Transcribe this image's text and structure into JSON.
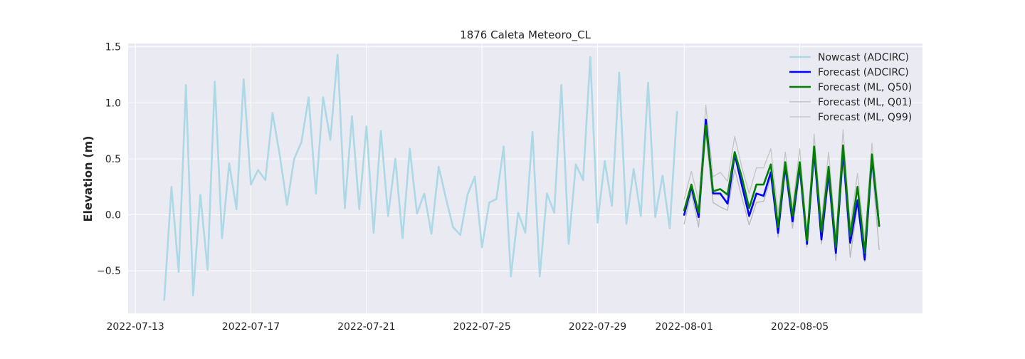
{
  "chart_data": {
    "type": "line",
    "title": "1876 Caleta Meteoro_CL",
    "xlabel": "",
    "ylabel": "Elevation (m)",
    "xlim": [
      "2022-07-12T18:00",
      "2022-08-09T06:00"
    ],
    "ylim": [
      -0.88,
      1.53
    ],
    "grid": true,
    "legend_position": "top-right",
    "x_ticks": [
      "2022-07-13",
      "2022-07-17",
      "2022-07-21",
      "2022-07-25",
      "2022-07-29",
      "2022-08-01",
      "2022-08-05"
    ],
    "y_ticks": [
      -0.5,
      0.0,
      0.5,
      1.0,
      1.5
    ],
    "y_tick_labels": [
      "−0.5",
      "0.0",
      "0.5",
      "1.0",
      "1.5"
    ],
    "colors": {
      "nowcast": "#add8e6",
      "forecast_adcirc": "#0000ff",
      "forecast_q50": "#008000",
      "forecast_q01": "#b8b8b8",
      "forecast_q99": "#c4c4c4",
      "plot_bg": "#eaeaf2",
      "grid": "#ffffff"
    },
    "series": [
      {
        "name": "Nowcast (ADCIRC)",
        "key": "nowcast",
        "width": 2.6,
        "x": [
          "2022-07-14T00:00",
          "2022-07-14T06:00",
          "2022-07-14T12:00",
          "2022-07-14T18:00",
          "2022-07-15T00:00",
          "2022-07-15T06:00",
          "2022-07-15T12:00",
          "2022-07-15T18:00",
          "2022-07-16T00:00",
          "2022-07-16T06:00",
          "2022-07-16T12:00",
          "2022-07-16T18:00",
          "2022-07-17T00:00",
          "2022-07-17T06:00",
          "2022-07-17T12:00",
          "2022-07-17T18:00",
          "2022-07-18T00:00",
          "2022-07-18T06:00",
          "2022-07-18T12:00",
          "2022-07-18T18:00",
          "2022-07-19T00:00",
          "2022-07-19T06:00",
          "2022-07-19T12:00",
          "2022-07-19T18:00",
          "2022-07-20T00:00",
          "2022-07-20T06:00",
          "2022-07-20T12:00",
          "2022-07-20T18:00",
          "2022-07-21T00:00",
          "2022-07-21T06:00",
          "2022-07-21T12:00",
          "2022-07-21T18:00",
          "2022-07-22T00:00",
          "2022-07-22T06:00",
          "2022-07-22T12:00",
          "2022-07-22T18:00",
          "2022-07-23T00:00",
          "2022-07-23T06:00",
          "2022-07-23T12:00",
          "2022-07-23T18:00",
          "2022-07-24T00:00",
          "2022-07-24T06:00",
          "2022-07-24T12:00",
          "2022-07-24T18:00",
          "2022-07-25T00:00",
          "2022-07-25T06:00",
          "2022-07-25T12:00",
          "2022-07-25T18:00",
          "2022-07-26T00:00",
          "2022-07-26T06:00",
          "2022-07-26T12:00",
          "2022-07-26T18:00",
          "2022-07-27T00:00",
          "2022-07-27T06:00",
          "2022-07-27T12:00",
          "2022-07-27T18:00",
          "2022-07-28T00:00",
          "2022-07-28T06:00",
          "2022-07-28T12:00",
          "2022-07-28T18:00",
          "2022-07-29T00:00",
          "2022-07-29T06:00",
          "2022-07-29T12:00",
          "2022-07-29T18:00",
          "2022-07-30T00:00",
          "2022-07-30T06:00",
          "2022-07-30T12:00",
          "2022-07-30T18:00",
          "2022-07-31T00:00",
          "2022-07-31T06:00",
          "2022-07-31T12:00",
          "2022-07-31T18:00"
        ],
        "y": [
          -0.76,
          0.25,
          -0.51,
          1.16,
          -0.72,
          0.18,
          -0.49,
          1.19,
          -0.21,
          0.46,
          0.05,
          1.21,
          0.27,
          0.4,
          0.31,
          0.91,
          0.53,
          0.09,
          0.5,
          0.65,
          1.05,
          0.19,
          1.05,
          0.67,
          1.43,
          0.06,
          0.88,
          0.05,
          0.79,
          -0.16,
          0.75,
          -0.01,
          0.5,
          -0.21,
          0.59,
          0.01,
          0.19,
          -0.17,
          0.43,
          0.15,
          -0.11,
          -0.18,
          0.18,
          0.34,
          -0.29,
          0.11,
          0.14,
          0.61,
          -0.55,
          0.02,
          -0.16,
          0.74,
          -0.55,
          0.19,
          0.02,
          1.16,
          -0.26,
          0.45,
          0.31,
          1.41,
          -0.07,
          0.48,
          0.08,
          1.27,
          -0.08,
          0.41,
          -0.01,
          1.18,
          -0.02,
          0.35,
          -0.12,
          0.92
        ]
      },
      {
        "name": "Forecast (ADCIRC)",
        "key": "forecast_adcirc",
        "width": 2.6,
        "x": [
          "2022-08-01T00:00",
          "2022-08-01T06:00",
          "2022-08-01T12:00",
          "2022-08-01T18:00",
          "2022-08-02T00:00",
          "2022-08-02T06:00",
          "2022-08-02T12:00",
          "2022-08-02T18:00",
          "2022-08-03T00:00",
          "2022-08-03T06:00",
          "2022-08-03T12:00",
          "2022-08-03T18:00",
          "2022-08-04T00:00",
          "2022-08-04T06:00",
          "2022-08-04T12:00",
          "2022-08-04T18:00",
          "2022-08-05T00:00",
          "2022-08-05T06:00",
          "2022-08-05T12:00",
          "2022-08-05T18:00",
          "2022-08-06T00:00",
          "2022-08-06T06:00",
          "2022-08-06T12:00",
          "2022-08-06T18:00",
          "2022-08-07T00:00",
          "2022-08-07T06:00",
          "2022-08-07T12:00",
          "2022-08-07T18:00"
        ],
        "y": [
          0.0,
          0.25,
          -0.02,
          0.85,
          0.19,
          0.19,
          0.1,
          0.54,
          0.26,
          -0.01,
          0.19,
          0.17,
          0.38,
          -0.16,
          0.44,
          -0.06,
          0.44,
          -0.26,
          0.57,
          -0.22,
          0.38,
          -0.34,
          0.57,
          -0.25,
          0.13,
          -0.4,
          0.51,
          -0.1
        ]
      },
      {
        "name": "Forecast (ML, Q50)",
        "key": "forecast_q50",
        "width": 2.6,
        "x": [
          "2022-08-01T00:00",
          "2022-08-01T06:00",
          "2022-08-01T12:00",
          "2022-08-01T18:00",
          "2022-08-02T00:00",
          "2022-08-02T06:00",
          "2022-08-02T12:00",
          "2022-08-02T18:00",
          "2022-08-03T00:00",
          "2022-08-03T06:00",
          "2022-08-03T12:00",
          "2022-08-03T18:00",
          "2022-08-04T00:00",
          "2022-08-04T06:00",
          "2022-08-04T12:00",
          "2022-08-04T18:00",
          "2022-08-05T00:00",
          "2022-08-05T06:00",
          "2022-08-05T12:00",
          "2022-08-05T18:00",
          "2022-08-06T00:00",
          "2022-08-06T06:00",
          "2022-08-06T12:00",
          "2022-08-06T18:00",
          "2022-08-07T00:00",
          "2022-08-07T06:00",
          "2022-08-07T12:00",
          "2022-08-07T18:00"
        ],
        "y": [
          0.04,
          0.27,
          0.02,
          0.8,
          0.21,
          0.23,
          0.18,
          0.56,
          0.33,
          0.06,
          0.27,
          0.27,
          0.45,
          -0.11,
          0.47,
          -0.01,
          0.47,
          -0.23,
          0.61,
          -0.15,
          0.43,
          -0.29,
          0.62,
          -0.19,
          0.25,
          -0.34,
          0.54,
          -0.1
        ]
      },
      {
        "name": "Forecast (ML, Q01)",
        "key": "forecast_q01",
        "width": 1.3,
        "x": [
          "2022-08-01T00:00",
          "2022-08-01T06:00",
          "2022-08-01T12:00",
          "2022-08-01T18:00",
          "2022-08-02T00:00",
          "2022-08-02T06:00",
          "2022-08-02T12:00",
          "2022-08-02T18:00",
          "2022-08-03T00:00",
          "2022-08-03T06:00",
          "2022-08-03T12:00",
          "2022-08-03T18:00",
          "2022-08-04T00:00",
          "2022-08-04T06:00",
          "2022-08-04T12:00",
          "2022-08-04T18:00",
          "2022-08-05T00:00",
          "2022-08-05T06:00",
          "2022-08-05T12:00",
          "2022-08-05T18:00",
          "2022-08-06T00:00",
          "2022-08-06T06:00",
          "2022-08-06T12:00",
          "2022-08-06T18:00",
          "2022-08-07T00:00",
          "2022-08-07T06:00",
          "2022-08-07T12:00",
          "2022-08-07T18:00"
        ],
        "y": [
          -0.08,
          0.2,
          -0.11,
          0.73,
          0.11,
          0.07,
          0.04,
          0.41,
          0.15,
          -0.09,
          0.11,
          0.12,
          0.33,
          -0.2,
          0.38,
          -0.12,
          0.37,
          -0.29,
          0.53,
          -0.26,
          0.3,
          -0.41,
          0.49,
          -0.38,
          0.09,
          -0.42,
          0.45,
          -0.31
        ]
      },
      {
        "name": "Forecast (ML, Q99)",
        "key": "forecast_q99",
        "width": 1.3,
        "x": [
          "2022-08-01T00:00",
          "2022-08-01T06:00",
          "2022-08-01T12:00",
          "2022-08-01T18:00",
          "2022-08-02T00:00",
          "2022-08-02T06:00",
          "2022-08-02T12:00",
          "2022-08-02T18:00",
          "2022-08-03T00:00",
          "2022-08-03T06:00",
          "2022-08-03T12:00",
          "2022-08-03T18:00",
          "2022-08-04T00:00",
          "2022-08-04T06:00",
          "2022-08-04T12:00",
          "2022-08-04T18:00",
          "2022-08-05T00:00",
          "2022-08-05T06:00",
          "2022-08-05T12:00",
          "2022-08-05T18:00",
          "2022-08-06T00:00",
          "2022-08-06T06:00",
          "2022-08-06T12:00",
          "2022-08-06T18:00",
          "2022-08-07T00:00",
          "2022-08-07T06:00",
          "2022-08-07T12:00",
          "2022-08-07T18:00"
        ],
        "y": [
          0.14,
          0.39,
          0.12,
          0.98,
          0.34,
          0.38,
          0.3,
          0.7,
          0.42,
          0.19,
          0.42,
          0.42,
          0.59,
          0.01,
          0.56,
          0.07,
          0.59,
          -0.15,
          0.72,
          -0.05,
          0.56,
          -0.2,
          0.76,
          -0.1,
          0.37,
          -0.22,
          0.64,
          0.01
        ]
      }
    ]
  }
}
